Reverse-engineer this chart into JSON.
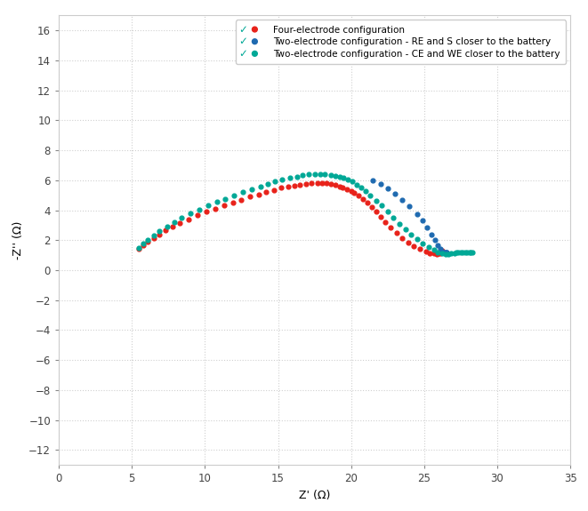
{
  "title": "",
  "xlabel": "Z' (Ω)",
  "ylabel": "-Z'' (Ω)",
  "xlim": [
    0,
    35
  ],
  "ylim": [
    -13,
    17
  ],
  "xticks": [
    0,
    5,
    10,
    15,
    20,
    25,
    30,
    35
  ],
  "yticks": [
    -12,
    -10,
    -8,
    -6,
    -4,
    -2,
    0,
    2,
    4,
    6,
    8,
    10,
    12,
    14,
    16
  ],
  "background_color": "#ffffff",
  "grid_color": "#d0d0d0",
  "legend_labels": [
    "Four-electrode configuration",
    "Two-electrode configuration - RE and S closer to the battery",
    "Two-electrode configuration - CE and WE closer to the battery"
  ],
  "colors": {
    "red": "#e8221a",
    "blue": "#1f6ab0",
    "green": "#00a896"
  },
  "checkmark_color": "#00a896",
  "red_x": [
    5.5,
    5.8,
    6.1,
    6.5,
    6.9,
    7.3,
    7.8,
    8.3,
    8.9,
    9.5,
    10.1,
    10.7,
    11.3,
    11.9,
    12.5,
    13.1,
    13.7,
    14.2,
    14.7,
    15.2,
    15.7,
    16.1,
    16.5,
    16.9,
    17.3,
    17.7,
    18.0,
    18.3,
    18.6,
    18.9,
    19.2,
    19.4,
    19.7,
    20.0,
    20.2,
    20.5,
    20.8,
    21.1,
    21.4,
    21.7,
    22.0,
    22.3,
    22.7,
    23.1,
    23.5,
    23.9,
    24.3,
    24.7,
    25.1,
    25.4,
    25.65,
    25.85,
    26.0,
    26.1,
    26.15,
    26.2,
    26.2
  ],
  "red_y": [
    1.45,
    1.65,
    1.9,
    2.15,
    2.4,
    2.65,
    2.9,
    3.15,
    3.4,
    3.65,
    3.9,
    4.1,
    4.3,
    4.5,
    4.7,
    4.9,
    5.05,
    5.2,
    5.35,
    5.5,
    5.6,
    5.65,
    5.7,
    5.75,
    5.8,
    5.8,
    5.8,
    5.8,
    5.75,
    5.7,
    5.6,
    5.5,
    5.4,
    5.3,
    5.15,
    4.95,
    4.75,
    4.5,
    4.2,
    3.9,
    3.55,
    3.2,
    2.85,
    2.5,
    2.15,
    1.85,
    1.6,
    1.4,
    1.25,
    1.15,
    1.1,
    1.05,
    1.1,
    1.15,
    1.2,
    1.25,
    1.3
  ],
  "blue_x": [
    21.5,
    22.0,
    22.5,
    23.0,
    23.5,
    24.0,
    24.5,
    24.9,
    25.2,
    25.5,
    25.75,
    25.95,
    26.1,
    26.2,
    26.3,
    26.4,
    26.45,
    26.5,
    26.55
  ],
  "blue_y": [
    6.0,
    5.75,
    5.45,
    5.1,
    4.7,
    4.25,
    3.75,
    3.3,
    2.85,
    2.4,
    2.0,
    1.65,
    1.4,
    1.25,
    1.2,
    1.2,
    1.2,
    1.2,
    1.2
  ],
  "green_x": [
    5.5,
    5.8,
    6.1,
    6.5,
    6.9,
    7.4,
    7.9,
    8.4,
    9.0,
    9.6,
    10.2,
    10.8,
    11.4,
    12.0,
    12.6,
    13.2,
    13.8,
    14.3,
    14.8,
    15.3,
    15.8,
    16.3,
    16.7,
    17.1,
    17.5,
    17.9,
    18.2,
    18.6,
    18.9,
    19.2,
    19.5,
    19.8,
    20.1,
    20.4,
    20.7,
    21.0,
    21.3,
    21.7,
    22.1,
    22.5,
    22.9,
    23.3,
    23.7,
    24.1,
    24.5,
    24.9,
    25.3,
    25.65,
    25.95,
    26.2,
    26.45,
    26.65,
    26.85,
    27.05,
    27.2,
    27.35,
    27.5,
    27.65,
    27.8,
    27.95,
    28.1,
    28.2,
    28.3
  ],
  "green_y": [
    1.5,
    1.75,
    2.0,
    2.3,
    2.6,
    2.9,
    3.2,
    3.5,
    3.8,
    4.05,
    4.3,
    4.55,
    4.75,
    5.0,
    5.2,
    5.4,
    5.6,
    5.75,
    5.9,
    6.05,
    6.15,
    6.25,
    6.35,
    6.4,
    6.4,
    6.4,
    6.4,
    6.35,
    6.3,
    6.25,
    6.15,
    6.05,
    5.9,
    5.7,
    5.5,
    5.25,
    5.0,
    4.65,
    4.3,
    3.9,
    3.5,
    3.1,
    2.75,
    2.4,
    2.1,
    1.8,
    1.55,
    1.35,
    1.2,
    1.1,
    1.05,
    1.05,
    1.1,
    1.15,
    1.2,
    1.2,
    1.2,
    1.2,
    1.2,
    1.2,
    1.2,
    1.2,
    1.2
  ],
  "dot_size": 12,
  "legend_fontsize": 7.5,
  "tick_fontsize": 8.5,
  "axis_label_fontsize": 9
}
